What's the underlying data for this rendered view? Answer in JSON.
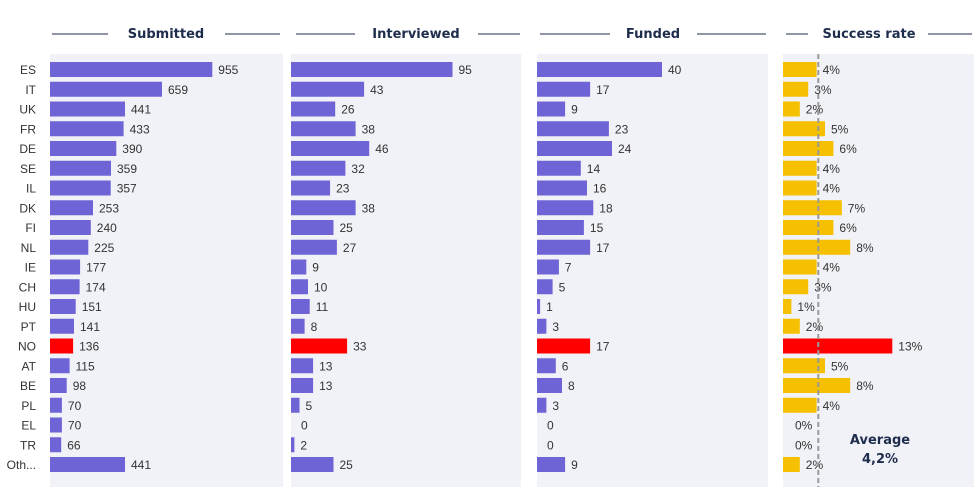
{
  "chart_data": {
    "type": "bar",
    "categories": [
      "ES",
      "IT",
      "UK",
      "FR",
      "DE",
      "SE",
      "IL",
      "DK",
      "FI",
      "NL",
      "IE",
      "CH",
      "HU",
      "PT",
      "NO",
      "AT",
      "BE",
      "PL",
      "EL",
      "TR",
      "Oth..."
    ],
    "highlight": "NO",
    "series": [
      {
        "name": "Submitted",
        "values": [
          955,
          659,
          441,
          433,
          390,
          359,
          357,
          253,
          240,
          225,
          177,
          174,
          151,
          141,
          136,
          115,
          98,
          70,
          70,
          66,
          441
        ],
        "labels": [
          "955",
          "659",
          "441",
          "433",
          "390",
          "359",
          "357",
          "253",
          "240",
          "225",
          "177",
          "174",
          "151",
          "141",
          "136",
          "115",
          "98",
          "70",
          "70",
          "66",
          "441"
        ],
        "max": 1000
      },
      {
        "name": "Interviewed",
        "values": [
          95,
          43,
          26,
          38,
          46,
          32,
          23,
          38,
          25,
          27,
          9,
          10,
          11,
          8,
          33,
          13,
          13,
          5,
          0,
          2,
          25
        ],
        "labels": [
          "95",
          "43",
          "26",
          "38",
          "46",
          "32",
          "23",
          "38",
          "25",
          "27",
          "9",
          "10",
          "11",
          "8",
          "33",
          "13",
          "13",
          "5",
          "0",
          "2",
          "25"
        ],
        "max": 100
      },
      {
        "name": "Funded",
        "values": [
          40,
          17,
          9,
          23,
          24,
          14,
          16,
          18,
          15,
          17,
          7,
          5,
          1,
          3,
          17,
          6,
          8,
          3,
          0,
          0,
          9
        ],
        "labels": [
          "40",
          "17",
          "9",
          "23",
          "24",
          "14",
          "16",
          "18",
          "15",
          "17",
          "7",
          "5",
          "1",
          "3",
          "17",
          "6",
          "8",
          "3",
          "0",
          "0",
          "9"
        ],
        "max": 48
      },
      {
        "name": "Success rate",
        "values": [
          4,
          3,
          2,
          5,
          6,
          4,
          4,
          7,
          6,
          8,
          4,
          3,
          1,
          2,
          13,
          5,
          8,
          4,
          0,
          0,
          2
        ],
        "labels": [
          "4%",
          "3%",
          "2%",
          "5%",
          "6%",
          "4%",
          "4%",
          "7%",
          "6%",
          "8%",
          "4%",
          "3%",
          "1%",
          "2%",
          "13%",
          "5%",
          "8%",
          "4%",
          "0%",
          "0%",
          "2%"
        ],
        "max": 13.8,
        "average": 4.2
      }
    ],
    "average_label": "Average",
    "average_value": "4,2%",
    "colors": {
      "bar": "#6f64d6",
      "rate_bar": "#f5c000",
      "highlight": "#ff0000",
      "panel": "#f1f2f7",
      "header": "#1f2d4d",
      "average_line": "#999999"
    }
  }
}
